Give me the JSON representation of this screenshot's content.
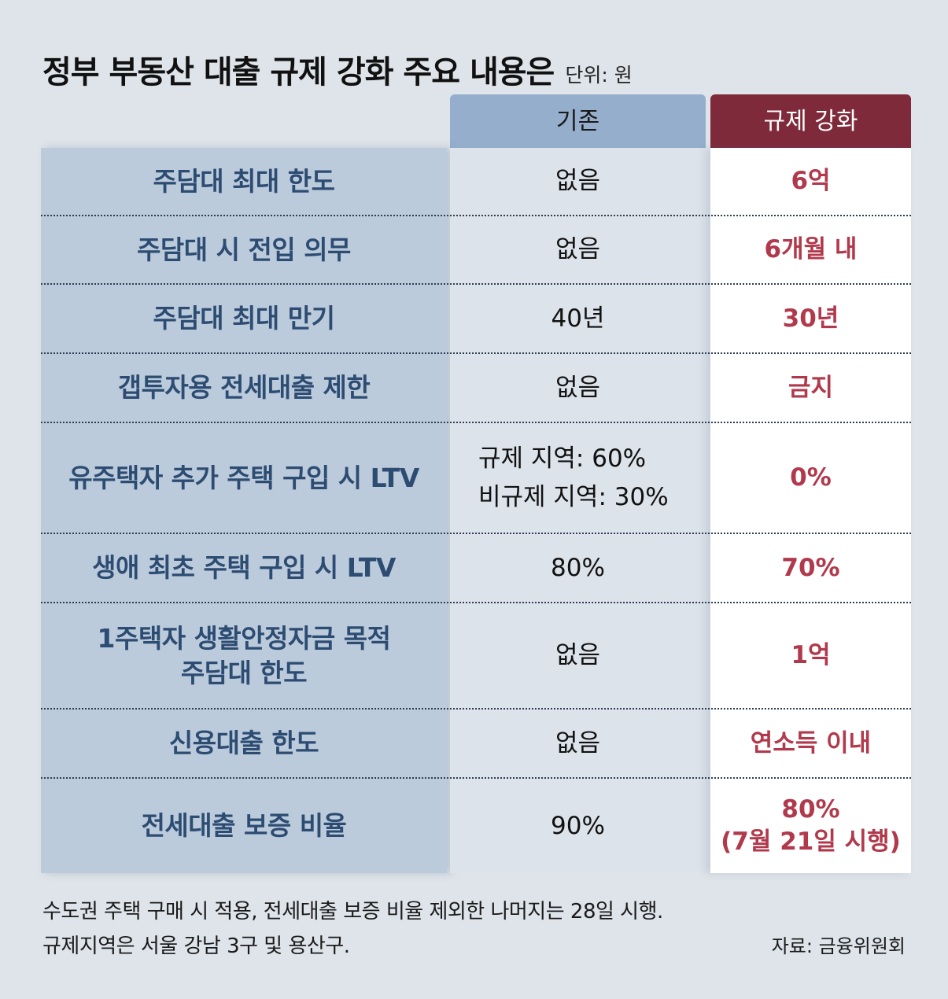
{
  "header": {
    "title": "정부 부동산 대출 규제 강화 주요 내용은",
    "unit": "단위: 원"
  },
  "columns": {
    "old": "기존",
    "new": "규제 강화"
  },
  "rows": [
    {
      "label": "주담대 최대 한도",
      "old": "없음",
      "new": "6억"
    },
    {
      "label": "주담대 시 전입 의무",
      "old": "없음",
      "new": "6개월 내"
    },
    {
      "label": "주담대 최대 만기",
      "old": "40년",
      "new": "30년"
    },
    {
      "label": "갭투자용 전세대출 제한",
      "old": "없음",
      "new": "금지"
    },
    {
      "label": "유주택자 추가 주택 구입 시 LTV",
      "old_line1": "규제 지역: 60%",
      "old_line2": "비규제 지역: 30%",
      "new": "0%"
    },
    {
      "label": "생애 최초 주택 구입 시 LTV",
      "old": "80%",
      "new": "70%"
    },
    {
      "label_line1": "1주택자 생활안정자금 목적",
      "label_line2": "주담대 한도",
      "old": "없음",
      "new": "1억"
    },
    {
      "label": "신용대출 한도",
      "old": "없음",
      "new": "연소득 이내"
    },
    {
      "label": "전세대출 보증 비율",
      "old": "90%",
      "new_line1": "80%",
      "new_line2": "(7월 21일 시행)"
    }
  ],
  "footer": {
    "note_line1": "수도권 주택 구매 시 적용, 전세대출 보증 비율 제외한 나머지는 28일 시행.",
    "note_line2": "규제지역은 서울 강남 3구 및 용산구.",
    "source": "자료: 금융위원회"
  },
  "colors": {
    "label_bg": "#bccbdc",
    "label_text": "#2d4c72",
    "old_header": "#94aecb",
    "new_header": "#7f2a3b",
    "new_text": "#b1394c"
  }
}
